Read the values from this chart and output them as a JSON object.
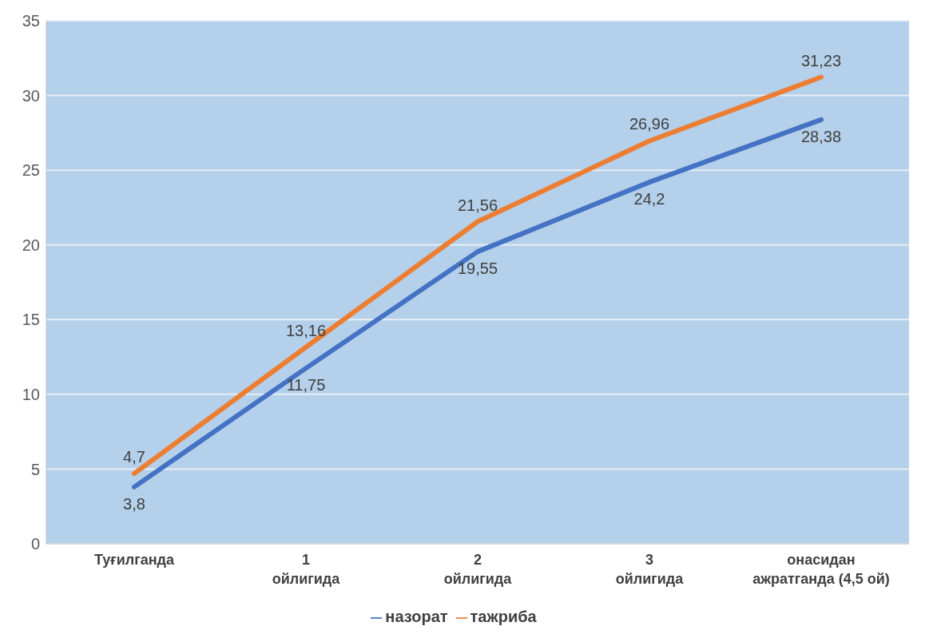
{
  "chart_data": {
    "type": "line",
    "categories": [
      "Туғилганда",
      "1 ойлигида",
      "2 ойлигида",
      "3 ойлигида",
      "онасидан ажратганда (4,5 ой)"
    ],
    "series": [
      {
        "name": "назорат",
        "color": "#4472c4",
        "values": [
          3.8,
          11.75,
          19.55,
          24.2,
          28.38
        ],
        "value_labels": [
          "3,8",
          "11,75",
          "19,55",
          "24,2",
          "28,38"
        ]
      },
      {
        "name": "тажриба",
        "color": "#ed7d31",
        "values": [
          4.7,
          13.16,
          21.56,
          26.96,
          31.23
        ],
        "value_labels": [
          "4,7",
          "13,16",
          "21,56",
          "26,96",
          "31,23"
        ]
      }
    ],
    "ylim": [
      0,
      35
    ],
    "yticks": [
      0,
      5,
      10,
      15,
      20,
      25,
      30,
      35
    ],
    "grid": "y",
    "legend": "bottom",
    "marker": "none",
    "line_style": "solid"
  }
}
